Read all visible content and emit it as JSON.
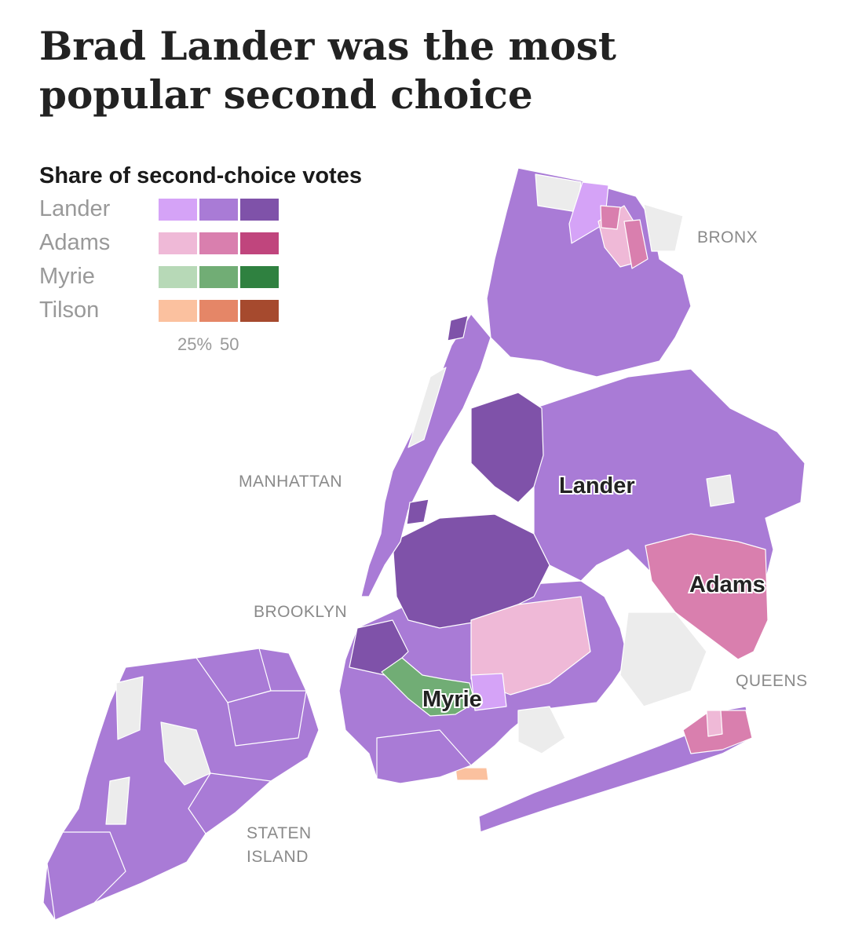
{
  "title": "Brad Lander was the most popular second choice",
  "legend": {
    "title": "Share of second-choice votes",
    "candidates": [
      {
        "name": "Lander",
        "colors": [
          "#d5a3f7",
          "#a97bd6",
          "#7f52a9"
        ]
      },
      {
        "name": "Adams",
        "colors": [
          "#efb9d7",
          "#d97fae",
          "#c0457d"
        ]
      },
      {
        "name": "Myrie",
        "colors": [
          "#b7d9b7",
          "#71ad75",
          "#2f8140"
        ]
      },
      {
        "name": "Tilson",
        "colors": [
          "#fbc19f",
          "#e58667",
          "#a64a2e"
        ]
      }
    ],
    "scale_labels": [
      "25%",
      "50"
    ]
  },
  "boroughs": [
    "BRONX",
    "MANHATTAN",
    "BROOKLYN",
    "QUEENS",
    "STATEN",
    "ISLAND"
  ],
  "candidate_labels": [
    "Lander",
    "Adams",
    "Myrie"
  ],
  "colors": {
    "no_data": "#ececec",
    "lander_light": "#d5a3f7",
    "lander_mid": "#a97bd6",
    "lander_dark": "#7f52a9",
    "adams_light": "#efb9d7",
    "adams_mid": "#d97fae",
    "myrie_mid": "#71ad75",
    "tilson_light": "#fbc19f"
  }
}
